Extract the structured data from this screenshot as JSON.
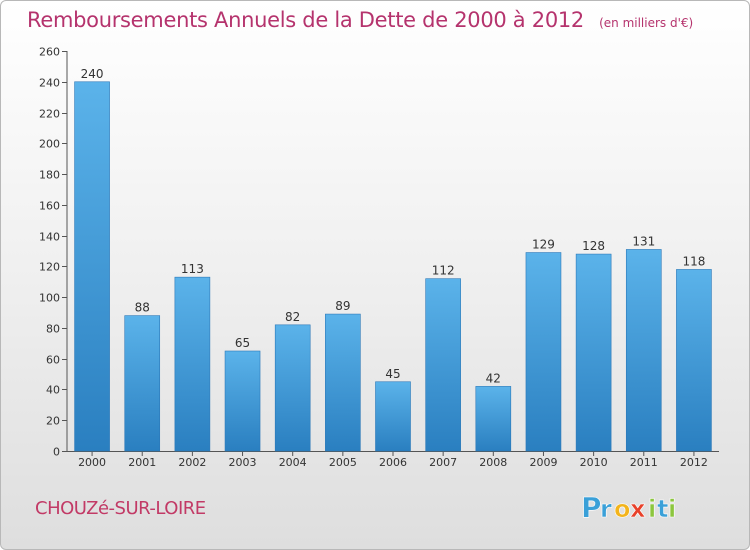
{
  "chart_data": {
    "type": "bar",
    "title": "Remboursements Annuels de la Dette de 2000 à 2012",
    "unit": "(en milliers d'€)",
    "categories": [
      "2000",
      "2001",
      "2002",
      "2003",
      "2004",
      "2005",
      "2006",
      "2007",
      "2008",
      "2009",
      "2010",
      "2011",
      "2012"
    ],
    "values": [
      240,
      88,
      113,
      65,
      82,
      89,
      45,
      112,
      42,
      129,
      128,
      131,
      118
    ],
    "ylim": [
      0,
      260
    ],
    "yticks": [
      0,
      20,
      40,
      60,
      80,
      100,
      120,
      140,
      160,
      180,
      200,
      220,
      240,
      260
    ],
    "xlabel": "",
    "ylabel": "",
    "grid": false,
    "bar_color": "#4aa3e0"
  },
  "commune": "CHOUZé-SUR-LOIRE",
  "logo": {
    "letters": [
      "P",
      "r",
      "o",
      "x",
      "i",
      "t",
      "i"
    ],
    "colors": [
      "#3aa0d8",
      "#3aa0d8",
      "#f3b41c",
      "#e8412a",
      "#8cc63f",
      "#3aa0d8",
      "#8cc63f"
    ]
  }
}
